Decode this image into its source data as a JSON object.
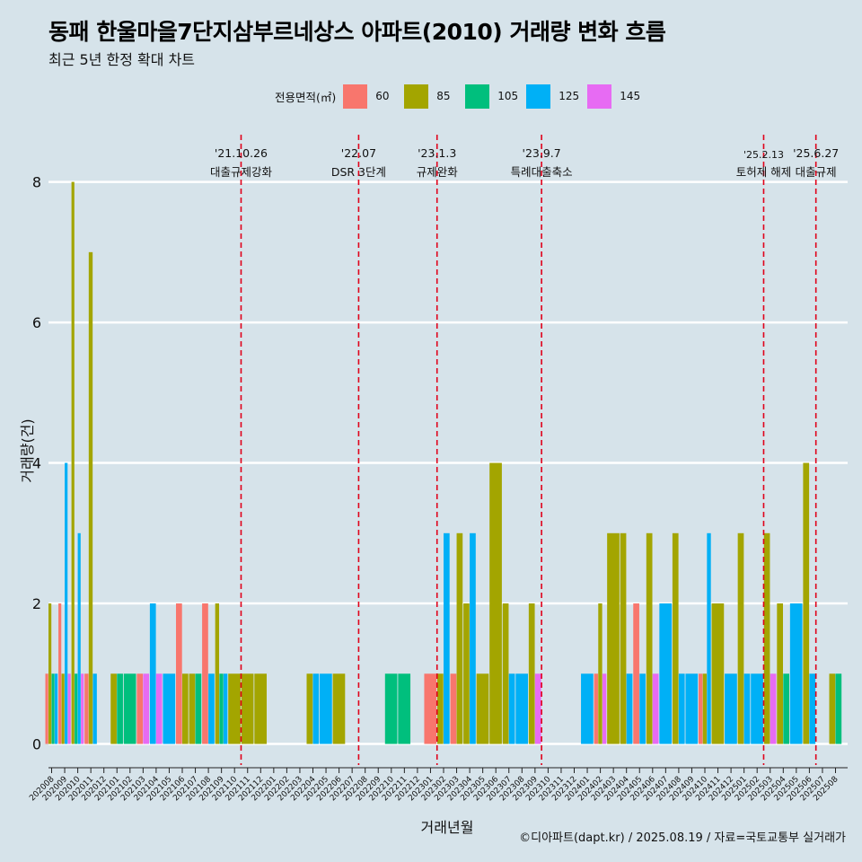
{
  "title": "동패 한울마을7단지삼부르네상스 아파트(2010) 거래량 변화 흐름",
  "subtitle": "최근 5년 한정 확대 차트",
  "caption": "©디아파트(dapt.kr) / 2025.08.19 / 자료=국토교통부 실거래가",
  "legend": {
    "title": "전용면적(㎡)",
    "items": [
      {
        "label": "60",
        "color": "#f8766d"
      },
      {
        "label": "85",
        "color": "#a3a500"
      },
      {
        "label": "105",
        "color": "#00bf7d"
      },
      {
        "label": "125",
        "color": "#00b0f6"
      },
      {
        "label": "145",
        "color": "#e76bf3"
      }
    ]
  },
  "chart_data": {
    "type": "bar",
    "xlabel": "거래년월",
    "ylabel": "거래량(건)",
    "ylim": [
      -0.3,
      8.8
    ],
    "yticks": [
      0,
      2,
      4,
      6,
      8
    ],
    "grid": true,
    "categories": [
      "202008",
      "202009",
      "202010",
      "202011",
      "202012",
      "202101",
      "202102",
      "202103",
      "202104",
      "202105",
      "202106",
      "202107",
      "202108",
      "202109",
      "202110",
      "202111",
      "202112",
      "202201",
      "202202",
      "202203",
      "202204",
      "202205",
      "202206",
      "202207",
      "202208",
      "202209",
      "202210",
      "202211",
      "202212",
      "202301",
      "202302",
      "202303",
      "202304",
      "202305",
      "202306",
      "202307",
      "202308",
      "202309",
      "202310",
      "202311",
      "202312",
      "202401",
      "202402",
      "202403",
      "202404",
      "202405",
      "202406",
      "202407",
      "202408",
      "202409",
      "202410",
      "202411",
      "202412",
      "202501",
      "202502",
      "202503",
      "202504",
      "202505",
      "202506",
      "202507",
      "202508"
    ],
    "series": [
      {
        "name": "60",
        "color": "#f8766d",
        "values": [
          1,
          2,
          0,
          1,
          0,
          0,
          0,
          1,
          0,
          0,
          2,
          0,
          2,
          0,
          0,
          0,
          0,
          0,
          0,
          0,
          0,
          0,
          0,
          0,
          0,
          0,
          0,
          0,
          0,
          1,
          0,
          1,
          0,
          0,
          0,
          0,
          0,
          0,
          0,
          0,
          0,
          0,
          1,
          0,
          0,
          2,
          0,
          0,
          0,
          0,
          1,
          0,
          0,
          0,
          0,
          0,
          0,
          0,
          0,
          0,
          0
        ]
      },
      {
        "name": "85",
        "color": "#a3a500",
        "values": [
          2,
          1,
          8,
          7,
          0,
          1,
          0,
          0,
          0,
          0,
          1,
          1,
          0,
          2,
          1,
          1,
          1,
          0,
          0,
          0,
          1,
          0,
          1,
          0,
          0,
          0,
          0,
          0,
          0,
          0,
          1,
          3,
          2,
          1,
          4,
          2,
          0,
          2,
          0,
          0,
          0,
          0,
          2,
          3,
          3,
          0,
          3,
          0,
          3,
          0,
          1,
          2,
          0,
          3,
          0,
          3,
          2,
          0,
          4,
          0,
          1
        ]
      },
      {
        "name": "105",
        "color": "#00bf7d",
        "values": [
          1,
          0,
          1,
          0,
          0,
          1,
          1,
          0,
          0,
          0,
          0,
          1,
          0,
          1,
          0,
          0,
          0,
          0,
          0,
          0,
          0,
          0,
          0,
          0,
          0,
          0,
          1,
          1,
          0,
          0,
          0,
          0,
          0,
          0,
          0,
          0,
          0,
          0,
          0,
          0,
          0,
          0,
          0,
          0,
          0,
          0,
          0,
          0,
          0,
          0,
          0,
          0,
          0,
          0,
          0,
          0,
          1,
          0,
          0,
          0,
          1
        ]
      },
      {
        "name": "125",
        "color": "#00b0f6",
        "values": [
          1,
          4,
          3,
          1,
          0,
          0,
          0,
          0,
          2,
          1,
          0,
          0,
          1,
          1,
          0,
          0,
          0,
          0,
          0,
          0,
          1,
          1,
          0,
          0,
          0,
          0,
          0,
          0,
          0,
          0,
          3,
          0,
          3,
          0,
          0,
          1,
          1,
          0,
          0,
          0,
          0,
          1,
          0,
          0,
          1,
          1,
          0,
          2,
          1,
          1,
          3,
          0,
          1,
          1,
          1,
          0,
          0,
          2,
          1,
          0,
          0
        ]
      },
      {
        "name": "145",
        "color": "#e76bf3",
        "values": [
          0,
          1,
          1,
          0,
          0,
          0,
          0,
          1,
          1,
          0,
          0,
          0,
          0,
          0,
          0,
          0,
          0,
          0,
          0,
          0,
          0,
          0,
          0,
          0,
          0,
          0,
          0,
          0,
          0,
          0,
          0,
          0,
          0,
          0,
          0,
          0,
          0,
          1,
          0,
          0,
          0,
          0,
          1,
          0,
          0,
          0,
          1,
          0,
          0,
          0,
          0,
          0,
          0,
          0,
          0,
          1,
          0,
          0,
          0,
          0,
          0
        ]
      }
    ],
    "annotations": [
      {
        "category": "202110",
        "date": "'21.10.26",
        "label": "대출규제강화"
      },
      {
        "category": "202207",
        "date": "'22.07",
        "label": "DSR 3단계"
      },
      {
        "category": "202301",
        "date": "'23.1.3",
        "label": "규제완화"
      },
      {
        "category": "202309",
        "date": "'23.9.7",
        "label": "특례대출축소"
      },
      {
        "category": "202502",
        "date": "'25.2.13",
        "label": "토허제 해제"
      },
      {
        "category": "202506",
        "date": "'25.6.27",
        "label": "대출규제"
      }
    ]
  }
}
